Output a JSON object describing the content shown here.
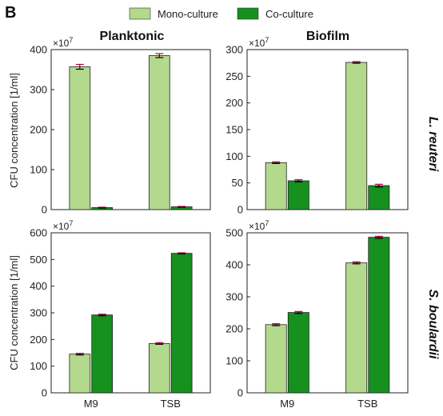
{
  "panel_label": "B",
  "legend": [
    {
      "label": "Mono-culture",
      "color": "#b3d98c"
    },
    {
      "label": "Co-culture",
      "color": "#16901e"
    }
  ],
  "column_titles": [
    "Planktonic",
    "Biofilm"
  ],
  "row_titles": [
    "L. reuteri",
    "S. boulardii"
  ],
  "ylabel": "CFU concentration [1/ml]",
  "colors": {
    "mono": "#b3d98c",
    "co": "#16901e",
    "error_bar": "#000000",
    "error_cap_accent": "#c00040"
  },
  "chart_data": [
    {
      "type": "bar",
      "row": "L. reuteri",
      "column": "Planktonic",
      "categories": [
        "M9",
        "TSB"
      ],
      "exponent_label": "×10^7",
      "ylim": [
        0,
        400
      ],
      "yticks": [
        0,
        100,
        200,
        300,
        400
      ],
      "grid": false,
      "series": [
        {
          "name": "Mono-culture",
          "values": [
            357,
            385
          ],
          "errors": [
            6,
            5
          ]
        },
        {
          "name": "Co-culture",
          "values": [
            5,
            7
          ],
          "errors": [
            1,
            1
          ]
        }
      ]
    },
    {
      "type": "bar",
      "row": "L. reuteri",
      "column": "Biofilm",
      "categories": [
        "M9",
        "TSB"
      ],
      "exponent_label": "×10^7",
      "ylim": [
        0,
        300
      ],
      "yticks": [
        0,
        50,
        100,
        150,
        200,
        250,
        300
      ],
      "grid": false,
      "series": [
        {
          "name": "Mono-culture",
          "values": [
            88,
            276
          ],
          "errors": [
            1.5,
            1.5
          ]
        },
        {
          "name": "Co-culture",
          "values": [
            54,
            45
          ],
          "errors": [
            2,
            2.5
          ]
        }
      ]
    },
    {
      "type": "bar",
      "row": "S. boulardii",
      "column": "Planktonic",
      "categories": [
        "M9",
        "TSB"
      ],
      "exponent_label": "×10^7",
      "ylim": [
        0,
        600
      ],
      "yticks": [
        0,
        100,
        200,
        300,
        400,
        500,
        600
      ],
      "grid": false,
      "series": [
        {
          "name": "Mono-culture",
          "values": [
            145,
            185
          ],
          "errors": [
            3,
            3
          ]
        },
        {
          "name": "Co-culture",
          "values": [
            292,
            523
          ],
          "errors": [
            3,
            2
          ]
        }
      ]
    },
    {
      "type": "bar",
      "row": "S. boulardii",
      "column": "Biofilm",
      "categories": [
        "M9",
        "TSB"
      ],
      "exponent_label": "×10^7",
      "ylim": [
        0,
        500
      ],
      "yticks": [
        0,
        100,
        200,
        300,
        400,
        500
      ],
      "grid": false,
      "series": [
        {
          "name": "Mono-culture",
          "values": [
            213,
            406
          ],
          "errors": [
            3,
            3
          ]
        },
        {
          "name": "Co-culture",
          "values": [
            251,
            486
          ],
          "errors": [
            3,
            3
          ]
        }
      ]
    }
  ]
}
